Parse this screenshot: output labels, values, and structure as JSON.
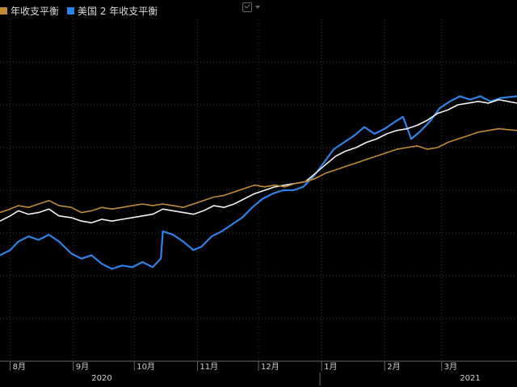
{
  "legend": {
    "series_a_label": "年收支平衡",
    "series_b_label": "美国 2 年收支平衡"
  },
  "toolbar": {
    "chart_icon": "checkbox-icon",
    "dropdown_icon": "chevron-down-icon"
  },
  "chart_data": {
    "type": "line",
    "x_axis": {
      "months": [
        {
          "label": "8月",
          "date": "2020-08-01"
        },
        {
          "label": "9月",
          "date": "2020-09-01"
        },
        {
          "label": "10月",
          "date": "2020-10-01"
        },
        {
          "label": "11月",
          "date": "2020-11-01"
        },
        {
          "label": "12月",
          "date": "2020-12-01"
        },
        {
          "label": "1月",
          "date": "2021-01-01"
        },
        {
          "label": "2月",
          "date": "2021-02-01"
        },
        {
          "label": "3月",
          "date": "2021-03-01"
        }
      ],
      "years": [
        {
          "label": "2020",
          "date": "2020-09-15"
        },
        {
          "label": "2021",
          "date": "2021-03-15"
        }
      ],
      "range": [
        "2020-07-27",
        "2021-04-07"
      ]
    },
    "y_range": [
      0.6,
      2.6
    ],
    "grid": true,
    "legend_position": "top-left",
    "series": [
      {
        "name": "美国 2 年收支平衡",
        "color": "#2b83e8",
        "points": [
          [
            "2020-07-27",
            1.22
          ],
          [
            "2020-08-01",
            1.25
          ],
          [
            "2020-08-05",
            1.3
          ],
          [
            "2020-08-10",
            1.33
          ],
          [
            "2020-08-15",
            1.31
          ],
          [
            "2020-08-20",
            1.34
          ],
          [
            "2020-08-25",
            1.3
          ],
          [
            "2020-08-31",
            1.23
          ],
          [
            "2020-09-05",
            1.2
          ],
          [
            "2020-09-10",
            1.22
          ],
          [
            "2020-09-15",
            1.17
          ],
          [
            "2020-09-20",
            1.14
          ],
          [
            "2020-09-25",
            1.16
          ],
          [
            "2020-09-30",
            1.15
          ],
          [
            "2020-10-05",
            1.18
          ],
          [
            "2020-10-10",
            1.15
          ],
          [
            "2020-10-14",
            1.2
          ],
          [
            "2020-10-15",
            1.36
          ],
          [
            "2020-10-20",
            1.34
          ],
          [
            "2020-10-25",
            1.3
          ],
          [
            "2020-10-30",
            1.25
          ],
          [
            "2020-11-03",
            1.27
          ],
          [
            "2020-11-08",
            1.33
          ],
          [
            "2020-11-13",
            1.36
          ],
          [
            "2020-11-18",
            1.4
          ],
          [
            "2020-11-23",
            1.44
          ],
          [
            "2020-11-28",
            1.5
          ],
          [
            "2020-12-03",
            1.55
          ],
          [
            "2020-12-08",
            1.58
          ],
          [
            "2020-12-13",
            1.6
          ],
          [
            "2020-12-18",
            1.6
          ],
          [
            "2020-12-23",
            1.62
          ],
          [
            "2020-12-28",
            1.68
          ],
          [
            "2021-01-02",
            1.76
          ],
          [
            "2021-01-07",
            1.84
          ],
          [
            "2021-01-12",
            1.88
          ],
          [
            "2021-01-17",
            1.92
          ],
          [
            "2021-01-22",
            1.97
          ],
          [
            "2021-01-27",
            1.93
          ],
          [
            "2021-02-01",
            1.96
          ],
          [
            "2021-02-06",
            2.0
          ],
          [
            "2021-02-10",
            2.03
          ],
          [
            "2021-02-14",
            1.9
          ],
          [
            "2021-02-18",
            1.94
          ],
          [
            "2021-02-23",
            2.0
          ],
          [
            "2021-02-28",
            2.08
          ],
          [
            "2021-03-05",
            2.12
          ],
          [
            "2021-03-10",
            2.15
          ],
          [
            "2021-03-15",
            2.13
          ],
          [
            "2021-03-20",
            2.15
          ],
          [
            "2021-03-25",
            2.12
          ],
          [
            "2021-03-30",
            2.14
          ],
          [
            "2021-04-07",
            2.15
          ]
        ]
      },
      {
        "name": "",
        "color": "#f2f2f2",
        "points": [
          [
            "2020-07-27",
            1.42
          ],
          [
            "2020-08-01",
            1.45
          ],
          [
            "2020-08-05",
            1.48
          ],
          [
            "2020-08-10",
            1.46
          ],
          [
            "2020-08-15",
            1.47
          ],
          [
            "2020-08-20",
            1.49
          ],
          [
            "2020-08-25",
            1.45
          ],
          [
            "2020-08-31",
            1.44
          ],
          [
            "2020-09-05",
            1.42
          ],
          [
            "2020-09-10",
            1.41
          ],
          [
            "2020-09-15",
            1.43
          ],
          [
            "2020-09-20",
            1.42
          ],
          [
            "2020-09-25",
            1.43
          ],
          [
            "2020-09-30",
            1.44
          ],
          [
            "2020-10-05",
            1.45
          ],
          [
            "2020-10-10",
            1.46
          ],
          [
            "2020-10-15",
            1.49
          ],
          [
            "2020-10-20",
            1.48
          ],
          [
            "2020-10-25",
            1.47
          ],
          [
            "2020-10-30",
            1.46
          ],
          [
            "2020-11-04",
            1.48
          ],
          [
            "2020-11-09",
            1.51
          ],
          [
            "2020-11-14",
            1.5
          ],
          [
            "2020-11-19",
            1.52
          ],
          [
            "2020-11-24",
            1.55
          ],
          [
            "2020-11-29",
            1.58
          ],
          [
            "2020-12-04",
            1.6
          ],
          [
            "2020-12-09",
            1.62
          ],
          [
            "2020-12-14",
            1.63
          ],
          [
            "2020-12-19",
            1.64
          ],
          [
            "2020-12-24",
            1.65
          ],
          [
            "2020-12-29",
            1.7
          ],
          [
            "2021-01-03",
            1.75
          ],
          [
            "2021-01-08",
            1.8
          ],
          [
            "2021-01-13",
            1.83
          ],
          [
            "2021-01-18",
            1.85
          ],
          [
            "2021-01-23",
            1.88
          ],
          [
            "2021-01-28",
            1.9
          ],
          [
            "2021-02-02",
            1.93
          ],
          [
            "2021-02-07",
            1.95
          ],
          [
            "2021-02-12",
            1.96
          ],
          [
            "2021-02-17",
            1.98
          ],
          [
            "2021-02-22",
            2.01
          ],
          [
            "2021-02-27",
            2.05
          ],
          [
            "2021-03-04",
            2.07
          ],
          [
            "2021-03-09",
            2.1
          ],
          [
            "2021-03-14",
            2.11
          ],
          [
            "2021-03-19",
            2.12
          ],
          [
            "2021-03-24",
            2.11
          ],
          [
            "2021-03-29",
            2.13
          ],
          [
            "2021-04-07",
            2.11
          ]
        ]
      },
      {
        "name": "年收支平衡",
        "color": "#c38a36",
        "points": [
          [
            "2020-07-27",
            1.47
          ],
          [
            "2020-08-01",
            1.49
          ],
          [
            "2020-08-05",
            1.51
          ],
          [
            "2020-08-10",
            1.5
          ],
          [
            "2020-08-15",
            1.52
          ],
          [
            "2020-08-20",
            1.54
          ],
          [
            "2020-08-25",
            1.51
          ],
          [
            "2020-08-31",
            1.5
          ],
          [
            "2020-09-05",
            1.47
          ],
          [
            "2020-09-10",
            1.48
          ],
          [
            "2020-09-15",
            1.5
          ],
          [
            "2020-09-20",
            1.49
          ],
          [
            "2020-09-25",
            1.5
          ],
          [
            "2020-09-30",
            1.51
          ],
          [
            "2020-10-05",
            1.52
          ],
          [
            "2020-10-10",
            1.51
          ],
          [
            "2020-10-15",
            1.52
          ],
          [
            "2020-10-20",
            1.51
          ],
          [
            "2020-10-25",
            1.5
          ],
          [
            "2020-10-30",
            1.52
          ],
          [
            "2020-11-04",
            1.54
          ],
          [
            "2020-11-09",
            1.56
          ],
          [
            "2020-11-14",
            1.57
          ],
          [
            "2020-11-19",
            1.59
          ],
          [
            "2020-11-24",
            1.61
          ],
          [
            "2020-11-29",
            1.63
          ],
          [
            "2020-12-04",
            1.62
          ],
          [
            "2020-12-09",
            1.63
          ],
          [
            "2020-12-14",
            1.62
          ],
          [
            "2020-12-19",
            1.64
          ],
          [
            "2020-12-24",
            1.65
          ],
          [
            "2020-12-29",
            1.67
          ],
          [
            "2021-01-03",
            1.7
          ],
          [
            "2021-01-08",
            1.72
          ],
          [
            "2021-01-13",
            1.74
          ],
          [
            "2021-01-18",
            1.76
          ],
          [
            "2021-01-23",
            1.78
          ],
          [
            "2021-01-28",
            1.8
          ],
          [
            "2021-02-02",
            1.82
          ],
          [
            "2021-02-07",
            1.84
          ],
          [
            "2021-02-12",
            1.85
          ],
          [
            "2021-02-17",
            1.86
          ],
          [
            "2021-02-22",
            1.84
          ],
          [
            "2021-02-27",
            1.85
          ],
          [
            "2021-03-04",
            1.88
          ],
          [
            "2021-03-09",
            1.9
          ],
          [
            "2021-03-14",
            1.92
          ],
          [
            "2021-03-19",
            1.94
          ],
          [
            "2021-03-24",
            1.95
          ],
          [
            "2021-03-29",
            1.96
          ],
          [
            "2021-04-07",
            1.95
          ]
        ]
      }
    ]
  }
}
